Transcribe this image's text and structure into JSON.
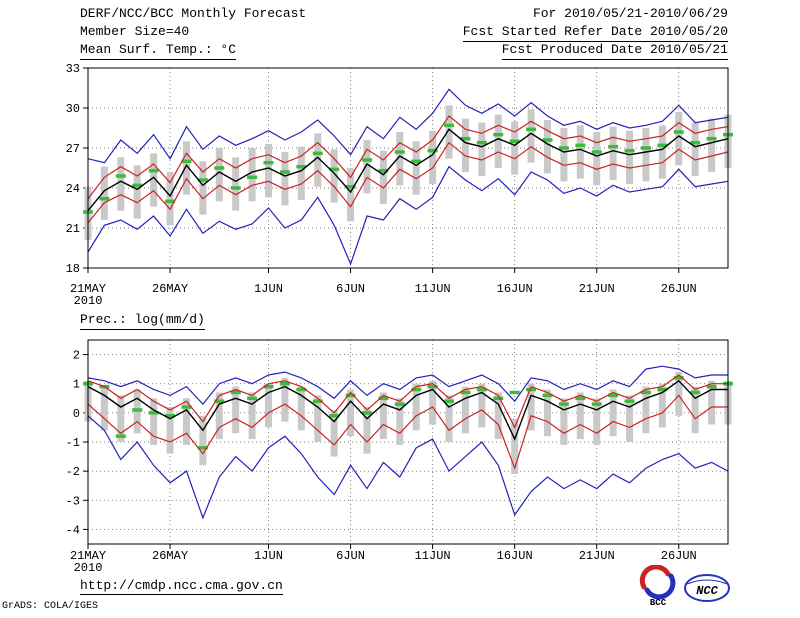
{
  "header": {
    "title": "DERF/NCC/BCC Monthly Forecast",
    "period": "For 2010/05/21-2010/06/29",
    "member_size": "Member Size=40",
    "refer_date": "Fcst Started Refer Date 2010/05/20",
    "produced_date": "Fcst Produced Date 2010/05/21"
  },
  "footer": {
    "url": "http://cmdp.ncc.cma.gov.cn",
    "credit": "GrADS: COLA/IGES",
    "logos": [
      {
        "id": "bcc",
        "label": "BCC",
        "color": "#2233bb",
        "color2": "#cc2222"
      },
      {
        "id": "ncc",
        "label": "NCC",
        "color": "#2233bb"
      }
    ]
  },
  "chart_data": [
    {
      "type": "line",
      "title": "Mean Surf. Temp.: °C",
      "ylim": [
        18,
        33
      ],
      "yticks": [
        18,
        21,
        24,
        27,
        30,
        33
      ],
      "x_tick_labels": [
        "21MAY",
        "26MAY",
        "1JUN",
        "6JUN",
        "11JUN",
        "16JUN",
        "21JUN",
        "26JUN"
      ],
      "x_tick_days": [
        0,
        5,
        11,
        16,
        21,
        26,
        31,
        36
      ],
      "x_sub_label": "2010",
      "grid": "dotted",
      "series": [
        {
          "name": "ensemble-max",
          "color": "#2222bb",
          "width": 1.2,
          "values": [
            26.2,
            25.9,
            27.6,
            26.6,
            28.0,
            26.2,
            28.6,
            26.9,
            27.9,
            27.2,
            27.7,
            28.3,
            27.6,
            28.2,
            29.1,
            27.9,
            26.5,
            28.6,
            27.7,
            29.3,
            28.4,
            29.6,
            31.4,
            30.2,
            29.6,
            30.3,
            29.4,
            30.4,
            29.4,
            28.7,
            29.0,
            28.4,
            28.9,
            28.5,
            28.7,
            29.0,
            30.2,
            28.9,
            29.1,
            29.3
          ]
        },
        {
          "name": "upper-quartile",
          "color": "#cc2222",
          "width": 1.2,
          "values": [
            23.2,
            24.8,
            25.6,
            24.9,
            25.8,
            24.4,
            26.6,
            25.2,
            26.2,
            25.5,
            26.2,
            26.5,
            25.9,
            26.4,
            27.4,
            26.2,
            24.8,
            26.9,
            26.1,
            27.4,
            26.7,
            27.6,
            29.4,
            28.4,
            28.1,
            28.7,
            28.2,
            29.0,
            28.3,
            27.7,
            27.9,
            27.4,
            27.8,
            27.5,
            27.7,
            27.9,
            28.9,
            28.1,
            28.4,
            28.6
          ]
        },
        {
          "name": "ensemble-mean",
          "color": "#000000",
          "width": 1.4,
          "values": [
            22.3,
            23.8,
            24.5,
            23.9,
            24.8,
            23.4,
            25.7,
            24.2,
            25.2,
            24.5,
            25.2,
            25.5,
            24.9,
            25.3,
            26.3,
            25.1,
            23.7,
            25.8,
            25.0,
            26.4,
            25.7,
            26.5,
            28.4,
            27.4,
            27.1,
            27.7,
            27.2,
            28.1,
            27.3,
            26.7,
            26.9,
            26.4,
            26.8,
            26.5,
            26.7,
            26.9,
            27.9,
            27.1,
            27.4,
            27.7
          ]
        },
        {
          "name": "lower-quartile",
          "color": "#cc2222",
          "width": 1.2,
          "values": [
            21.4,
            22.9,
            23.5,
            22.9,
            23.8,
            22.4,
            24.7,
            23.2,
            24.2,
            23.5,
            24.2,
            24.5,
            23.9,
            24.3,
            25.3,
            24.1,
            22.6,
            24.8,
            24.0,
            25.4,
            24.7,
            25.5,
            27.4,
            26.4,
            26.1,
            26.7,
            26.2,
            27.1,
            26.3,
            25.7,
            25.9,
            25.4,
            25.8,
            25.5,
            25.7,
            25.9,
            26.9,
            26.1,
            26.4,
            26.7
          ]
        },
        {
          "name": "ensemble-min",
          "color": "#2222bb",
          "width": 1.2,
          "values": [
            19.2,
            21.2,
            21.6,
            20.9,
            21.9,
            20.4,
            22.4,
            20.6,
            21.5,
            20.9,
            21.3,
            22.5,
            21.0,
            21.6,
            23.3,
            21.2,
            18.3,
            21.9,
            21.6,
            23.2,
            22.4,
            23.3,
            25.6,
            24.6,
            23.8,
            24.7,
            23.5,
            25.2,
            24.6,
            23.6,
            24.0,
            23.4,
            24.2,
            23.7,
            23.9,
            24.1,
            25.4,
            24.1,
            24.3,
            24.5
          ]
        }
      ],
      "bars": {
        "name": "member-spread",
        "color": "#c9c9c9",
        "low": [
          20.1,
          21.6,
          22.3,
          21.7,
          22.6,
          21.2,
          23.5,
          22.0,
          23.0,
          22.3,
          23.0,
          23.3,
          22.7,
          23.1,
          24.1,
          22.9,
          21.5,
          23.6,
          22.8,
          24.2,
          23.5,
          24.3,
          26.2,
          25.2,
          24.9,
          25.5,
          25.0,
          25.9,
          25.1,
          24.5,
          24.7,
          24.2,
          24.6,
          24.3,
          24.5,
          24.7,
          25.7,
          24.9,
          25.2,
          25.5
        ],
        "high": [
          24.1,
          25.6,
          26.3,
          25.7,
          26.6,
          25.2,
          27.5,
          26.0,
          27.0,
          26.3,
          27.0,
          27.3,
          26.7,
          27.1,
          28.1,
          26.9,
          25.5,
          27.6,
          26.8,
          28.2,
          27.5,
          28.3,
          30.2,
          29.2,
          28.9,
          29.5,
          29.0,
          29.9,
          29.1,
          28.5,
          28.7,
          28.2,
          28.6,
          28.3,
          28.5,
          28.7,
          29.7,
          28.9,
          29.2,
          29.5
        ]
      },
      "dashes": {
        "name": "observation-dash",
        "color": "#3dbb3d",
        "values": [
          22.2,
          23.2,
          24.9,
          24.2,
          25.3,
          23.0,
          26.0,
          24.6,
          25.5,
          24.0,
          24.8,
          25.9,
          25.2,
          25.6,
          26.6,
          25.4,
          24.1,
          26.1,
          25.3,
          26.7,
          26.0,
          26.8,
          28.7,
          27.7,
          27.4,
          28.0,
          27.5,
          28.4,
          27.6,
          27.0,
          27.2,
          26.7,
          27.1,
          26.8,
          27.0,
          27.2,
          28.2,
          27.4,
          27.7,
          28.0
        ]
      }
    },
    {
      "type": "line",
      "title": "Prec.: log(mm/d)",
      "ylim": [
        -4.5,
        2.5
      ],
      "yticks": [
        -4,
        -3,
        -2,
        -1,
        0,
        1,
        2
      ],
      "x_tick_labels": [
        "21MAY",
        "26MAY",
        "1JUN",
        "6JUN",
        "11JUN",
        "16JUN",
        "21JUN",
        "26JUN"
      ],
      "x_tick_days": [
        0,
        5,
        11,
        16,
        21,
        26,
        31,
        36
      ],
      "x_sub_label": "2010",
      "grid": "dotted",
      "series": [
        {
          "name": "ensemble-max",
          "color": "#2222bb",
          "width": 1.2,
          "values": [
            1.2,
            1.1,
            0.9,
            1.1,
            0.8,
            0.6,
            0.9,
            0.3,
            1.0,
            1.2,
            1.0,
            1.3,
            1.4,
            1.2,
            0.9,
            0.5,
            1.1,
            0.6,
            1.0,
            0.8,
            1.2,
            1.3,
            0.9,
            1.1,
            1.3,
            1.0,
            0.4,
            1.2,
            1.1,
            0.8,
            1.0,
            0.8,
            1.1,
            0.9,
            1.5,
            1.6,
            1.5,
            1.2,
            1.3,
            1.3
          ]
        },
        {
          "name": "upper-quartile",
          "color": "#cc2222",
          "width": 1.2,
          "values": [
            1.1,
            0.9,
            0.5,
            0.8,
            0.4,
            0.1,
            0.4,
            -0.3,
            0.6,
            0.8,
            0.6,
            1.0,
            1.1,
            0.9,
            0.5,
            0.0,
            0.7,
            0.1,
            0.6,
            0.4,
            0.9,
            1.0,
            0.5,
            0.8,
            0.9,
            0.6,
            -0.5,
            0.9,
            0.7,
            0.4,
            0.6,
            0.4,
            0.7,
            0.5,
            0.8,
            0.9,
            1.3,
            0.8,
            1.0,
            1.0
          ]
        },
        {
          "name": "ensemble-mean",
          "color": "#000000",
          "width": 1.4,
          "values": [
            0.9,
            0.6,
            0.2,
            0.5,
            0.1,
            -0.2,
            0.1,
            -0.6,
            0.3,
            0.5,
            0.3,
            0.7,
            0.9,
            0.6,
            0.2,
            -0.3,
            0.4,
            -0.2,
            0.3,
            0.1,
            0.6,
            0.8,
            0.2,
            0.5,
            0.7,
            0.3,
            -0.9,
            0.6,
            0.4,
            0.1,
            0.3,
            0.1,
            0.4,
            0.2,
            0.5,
            0.7,
            1.1,
            0.5,
            0.8,
            0.8
          ]
        },
        {
          "name": "lower-quartile",
          "color": "#cc2222",
          "width": 1.2,
          "values": [
            0.3,
            -0.2,
            -0.7,
            -0.3,
            -0.8,
            -1.0,
            -0.7,
            -1.4,
            -0.5,
            -0.2,
            -0.5,
            0.0,
            0.3,
            -0.1,
            -0.6,
            -1.1,
            -0.4,
            -1.0,
            -0.4,
            -0.7,
            -0.1,
            0.2,
            -0.6,
            -0.2,
            0.1,
            -0.4,
            -1.9,
            -0.1,
            -0.3,
            -0.7,
            -0.4,
            -0.7,
            -0.3,
            -0.5,
            -0.2,
            0.0,
            0.6,
            -0.2,
            0.2,
            0.2
          ]
        },
        {
          "name": "ensemble-min",
          "color": "#2222bb",
          "width": 1.2,
          "values": [
            -0.1,
            -0.6,
            -1.6,
            -1.0,
            -1.8,
            -2.4,
            -2.0,
            -3.6,
            -2.2,
            -1.5,
            -2.0,
            -1.2,
            -0.8,
            -1.4,
            -2.2,
            -2.8,
            -1.8,
            -2.6,
            -1.7,
            -2.2,
            -1.2,
            -0.9,
            -2.0,
            -1.5,
            -1.0,
            -1.8,
            -3.5,
            -2.7,
            -2.2,
            -2.6,
            -2.3,
            -2.6,
            -2.1,
            -2.4,
            -1.9,
            -1.6,
            -1.4,
            -1.9,
            -1.7,
            -2.0
          ]
        }
      ],
      "bars": {
        "name": "member-spread",
        "color": "#c9c9c9",
        "low": [
          -0.3,
          -0.6,
          -1.0,
          -0.7,
          -1.1,
          -1.4,
          -1.1,
          -1.8,
          -0.9,
          -0.7,
          -0.9,
          -0.5,
          -0.3,
          -0.6,
          -1.0,
          -1.5,
          -0.8,
          -1.4,
          -0.9,
          -1.1,
          -0.6,
          -0.4,
          -1.0,
          -0.7,
          -0.5,
          -0.9,
          -2.1,
          -0.6,
          -0.8,
          -1.1,
          -0.9,
          -1.1,
          -0.8,
          -1.0,
          -0.7,
          -0.5,
          -0.1,
          -0.7,
          -0.4,
          -0.4
        ],
        "high": [
          1.1,
          0.9,
          0.6,
          0.8,
          0.5,
          0.2,
          0.5,
          -0.1,
          0.7,
          0.9,
          0.7,
          1.0,
          1.2,
          0.9,
          0.6,
          0.1,
          0.8,
          0.2,
          0.7,
          0.5,
          1.0,
          1.1,
          0.6,
          0.9,
          1.0,
          0.7,
          -0.2,
          1.0,
          0.8,
          0.5,
          0.7,
          0.5,
          0.8,
          0.6,
          0.9,
          1.0,
          1.4,
          0.9,
          1.1,
          1.1
        ]
      },
      "dashes": {
        "name": "observation-dash",
        "color": "#3dbb3d",
        "values": [
          1.0,
          0.9,
          -0.8,
          0.1,
          0.0,
          -0.1,
          0.2,
          -1.2,
          0.4,
          0.7,
          0.5,
          0.9,
          1.0,
          0.8,
          0.4,
          -0.1,
          0.6,
          0.0,
          0.5,
          0.3,
          0.8,
          0.9,
          0.4,
          0.7,
          0.8,
          0.5,
          0.7,
          0.8,
          0.6,
          0.3,
          0.5,
          0.3,
          0.6,
          0.4,
          0.7,
          0.8,
          1.2,
          0.7,
          0.9,
          1.0
        ]
      }
    }
  ]
}
